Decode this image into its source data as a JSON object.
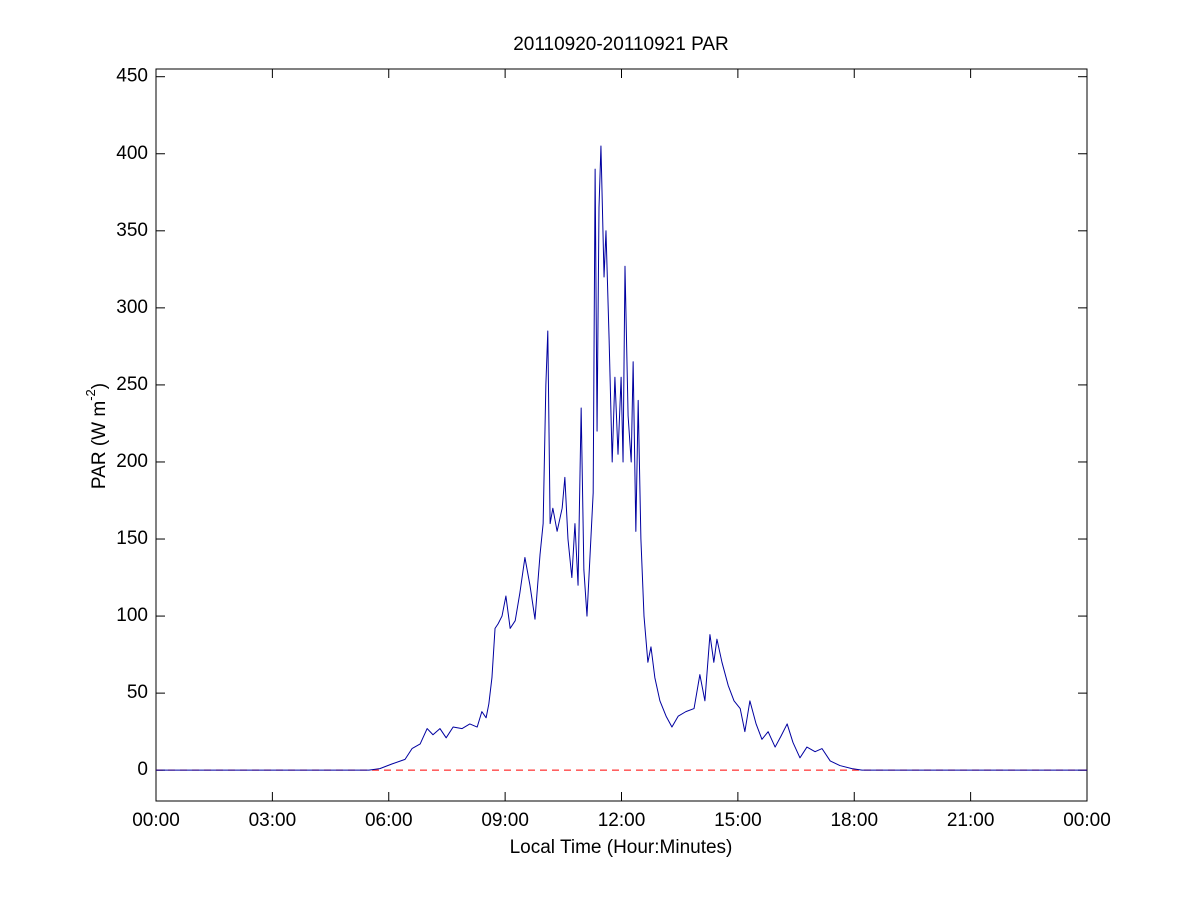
{
  "chart_data": {
    "type": "line",
    "title": "20110920-20110921 PAR",
    "xlabel": "Local Time (Hour:Minutes)",
    "ylabel": {
      "text": "PAR (W m",
      "sup": "-2",
      "end": ")"
    },
    "xlim": [
      0,
      24
    ],
    "ylim": [
      -20,
      455
    ],
    "xticks": [
      {
        "value": 0,
        "label": "00:00"
      },
      {
        "value": 3,
        "label": "03:00"
      },
      {
        "value": 6,
        "label": "06:00"
      },
      {
        "value": 9,
        "label": "09:00"
      },
      {
        "value": 12,
        "label": "12:00"
      },
      {
        "value": 15,
        "label": "15:00"
      },
      {
        "value": 18,
        "label": "18:00"
      },
      {
        "value": 21,
        "label": "21:00"
      },
      {
        "value": 24,
        "label": "00:00"
      }
    ],
    "yticks": [
      0,
      50,
      100,
      150,
      200,
      250,
      300,
      350,
      400,
      450
    ],
    "grid": false,
    "series": [
      {
        "color": "#0000a0",
        "style": "solid",
        "x": [
          0,
          5.49,
          5.77,
          6.08,
          6.42,
          6.6,
          6.81,
          6.99,
          7.14,
          7.32,
          7.48,
          7.66,
          7.89,
          8.09,
          8.28,
          8.4,
          8.51,
          8.58,
          8.66,
          8.74,
          8.82,
          8.92,
          9.02,
          9.13,
          9.26,
          9.38,
          9.51,
          9.64,
          9.77,
          9.9,
          9.98,
          10.05,
          10.1,
          10.16,
          10.23,
          10.34,
          10.47,
          10.54,
          10.62,
          10.72,
          10.8,
          10.88,
          10.96,
          11.03,
          11.11,
          11.19,
          11.27,
          11.32,
          11.37,
          11.42,
          11.47,
          11.55,
          11.6,
          11.68,
          11.76,
          11.83,
          11.91,
          11.99,
          12.04,
          12.09,
          12.17,
          12.25,
          12.3,
          12.37,
          12.43,
          12.5,
          12.58,
          12.68,
          12.76,
          12.86,
          12.99,
          13.15,
          13.3,
          13.46,
          13.66,
          13.87,
          14.02,
          14.15,
          14.28,
          14.38,
          14.46,
          14.59,
          14.75,
          14.9,
          15.06,
          15.18,
          15.31,
          15.47,
          15.62,
          15.78,
          15.96,
          16.11,
          16.27,
          16.42,
          16.6,
          16.78,
          16.99,
          17.17,
          17.38,
          17.63,
          17.94,
          18.2,
          24
        ],
        "values": [
          0,
          0,
          1,
          4,
          7,
          14,
          17,
          27,
          23,
          27,
          21,
          28,
          27,
          30,
          28,
          38,
          34,
          43,
          60,
          92,
          95,
          100,
          113,
          92,
          97,
          115,
          138,
          120,
          98,
          140,
          160,
          250,
          285,
          160,
          170,
          155,
          170,
          190,
          150,
          125,
          160,
          120,
          235,
          130,
          100,
          140,
          180,
          390,
          220,
          365,
          405,
          320,
          350,
          280,
          200,
          255,
          205,
          255,
          200,
          327,
          230,
          200,
          265,
          155,
          240,
          150,
          100,
          70,
          80,
          60,
          45,
          35,
          28,
          35,
          38,
          40,
          62,
          45,
          88,
          70,
          85,
          70,
          55,
          45,
          40,
          25,
          45,
          30,
          20,
          25,
          15,
          22,
          30,
          18,
          8,
          15,
          12,
          14,
          6,
          3,
          1,
          0,
          0
        ]
      },
      {
        "color": "#ff0000",
        "style": "dashed",
        "x": [
          0,
          24
        ],
        "values": [
          0,
          0
        ]
      }
    ]
  }
}
